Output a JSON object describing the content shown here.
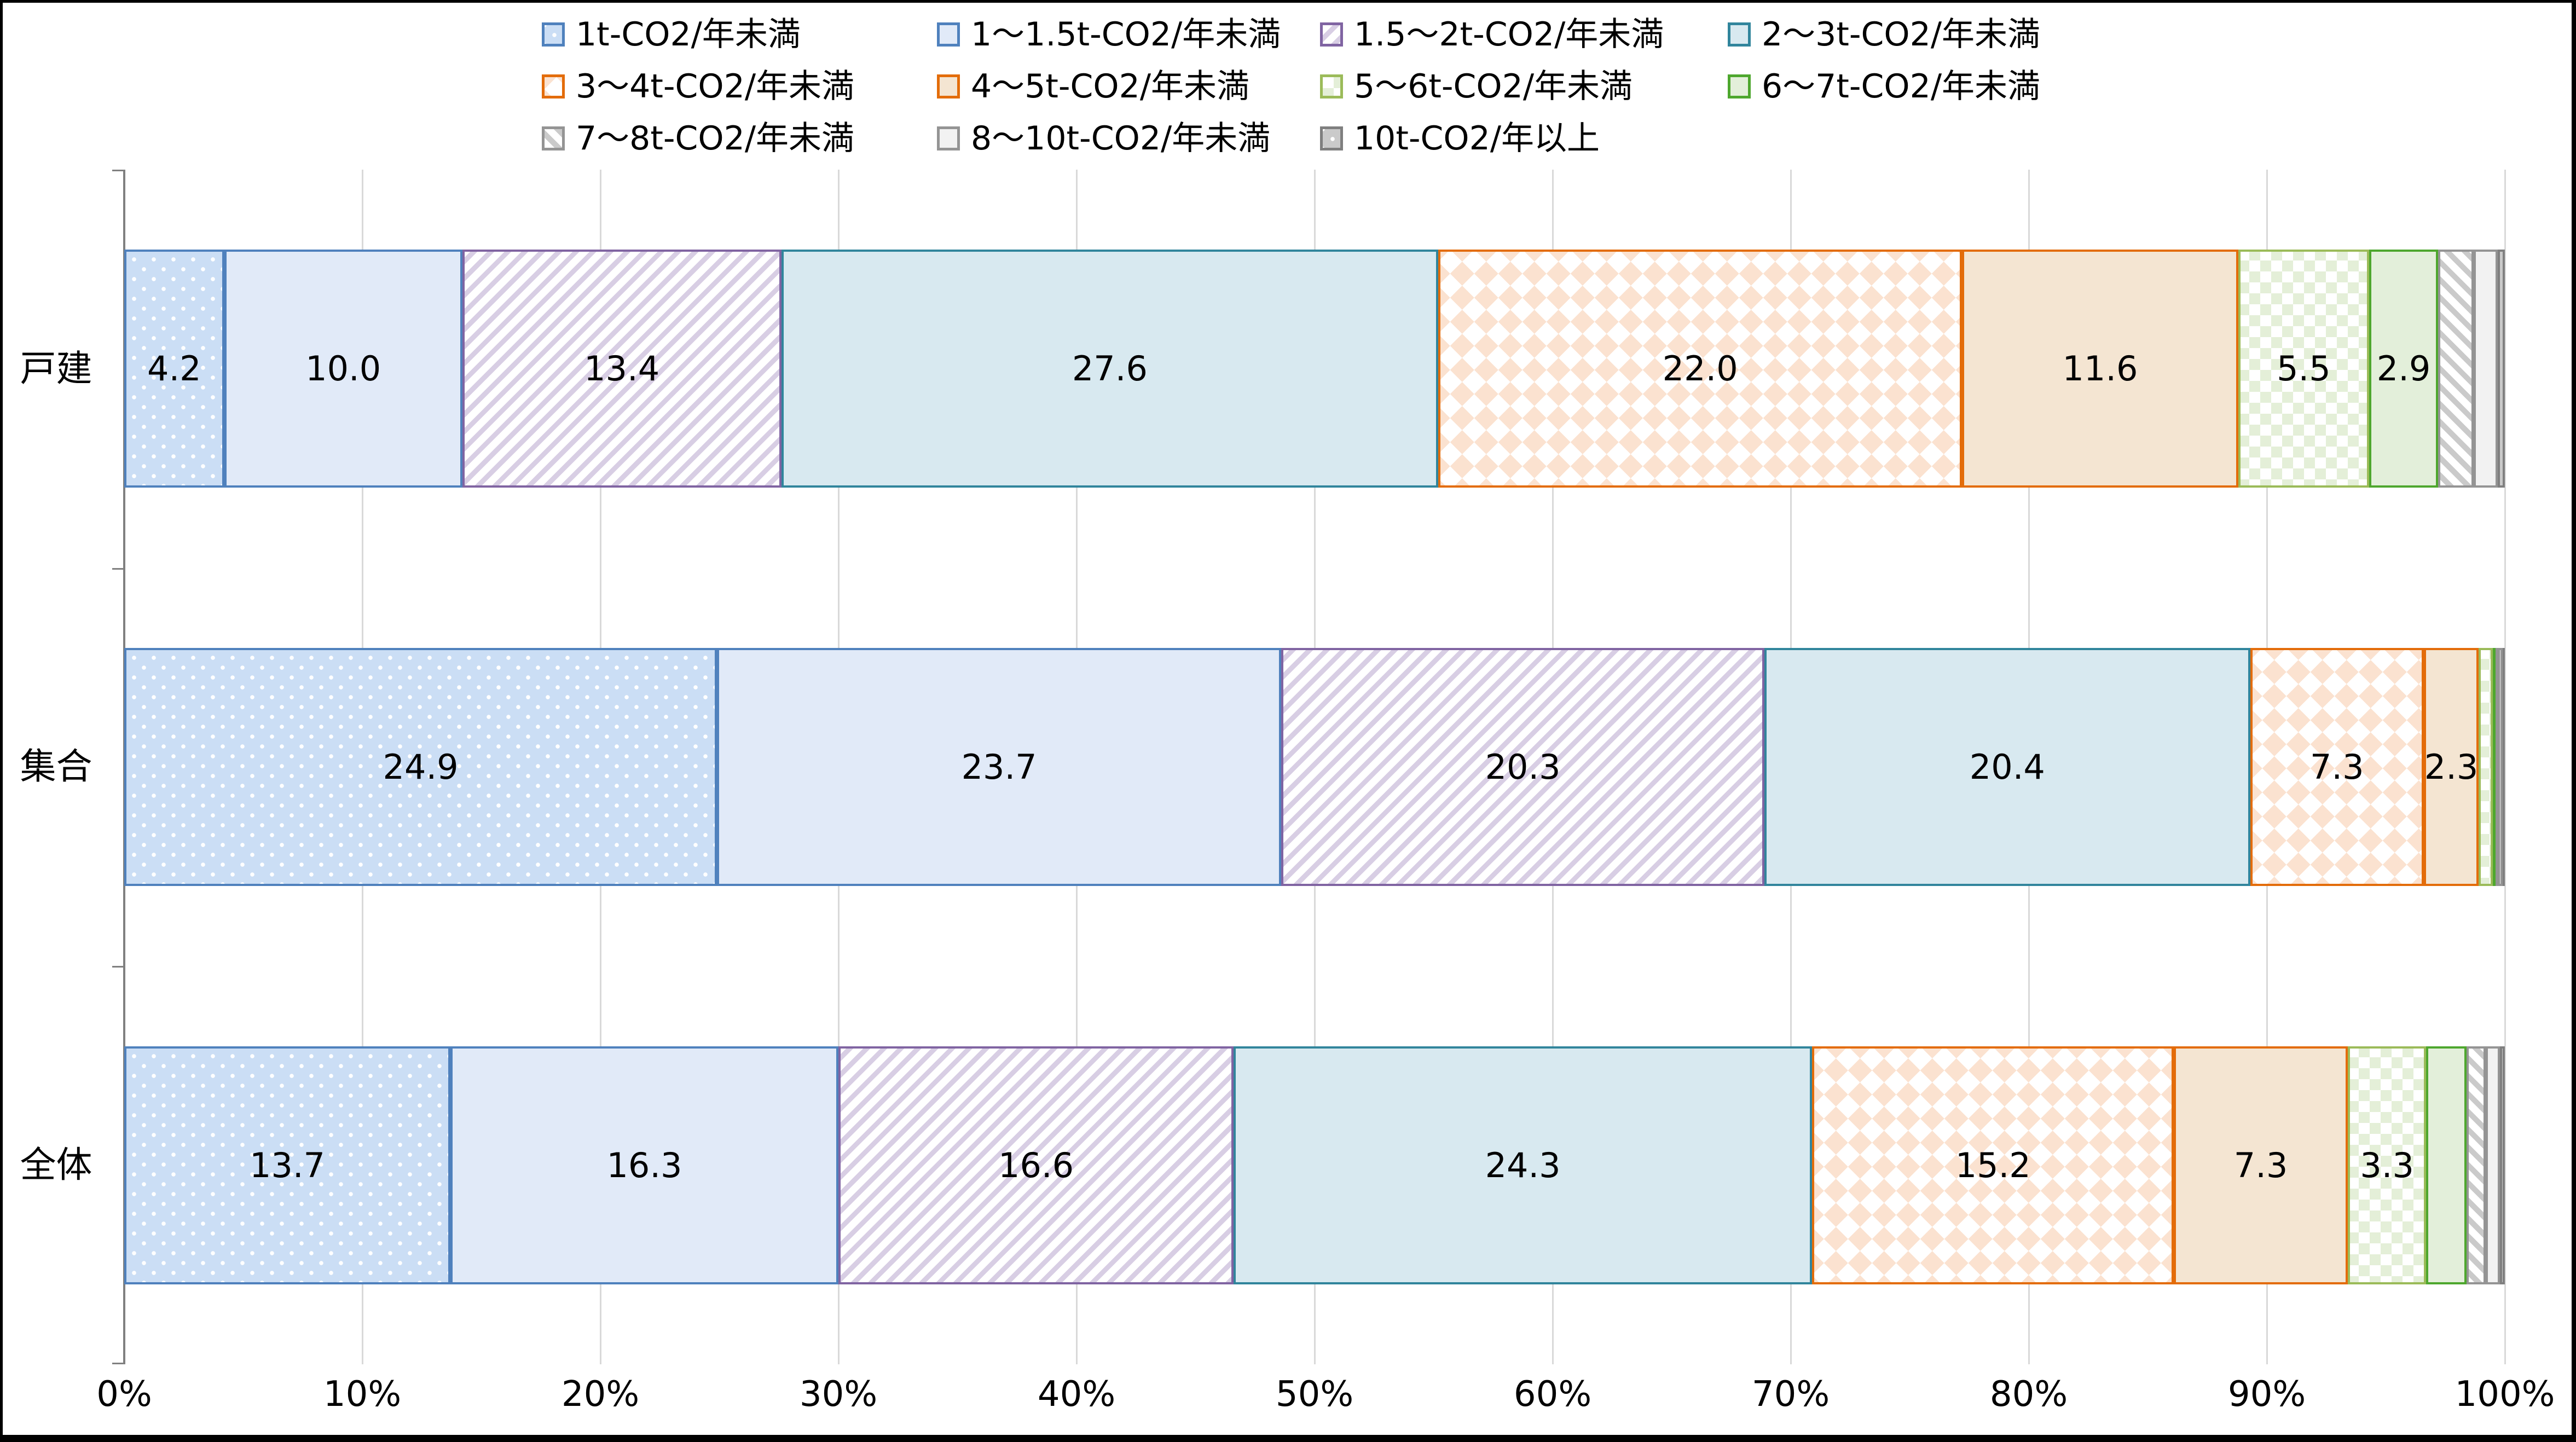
{
  "chart_data": {
    "type": "bar",
    "orientation": "horizontal",
    "stacked": true,
    "unit": "%",
    "grid": true,
    "legend_position": "top",
    "categories": [
      "戸建",
      "集合",
      "全体"
    ],
    "xlim": [
      0,
      100
    ],
    "x_tick_labels": [
      "0%",
      "10%",
      "20%",
      "30%",
      "40%",
      "50%",
      "60%",
      "70%",
      "80%",
      "90%",
      "100%"
    ],
    "value_label_min_pct": 2,
    "colors": {
      "gridline": "#D9D9D9",
      "axis": "#808080",
      "text": "#000000"
    },
    "series": [
      {
        "name": "1t-CO2/年未満",
        "pattern": "dots",
        "fill": "#CBDEF5",
        "accent": "#FFFFFF",
        "border": "#4F81BD",
        "values": [
          4.2,
          24.9,
          13.7
        ]
      },
      {
        "name": "1～1.5t-CO2/年未満",
        "pattern": "solid",
        "fill": "#E1EAF8",
        "accent": "#E1EAF8",
        "border": "#4F81BD",
        "values": [
          10.0,
          23.7,
          16.3
        ]
      },
      {
        "name": "1.5～2t-CO2/年未満",
        "pattern": "stripes-up",
        "fill": "#FFFFFF",
        "accent": "#D8CEE4",
        "border": "#8064A2",
        "values": [
          13.4,
          20.3,
          16.6
        ]
      },
      {
        "name": "2～3t-CO2/年未満",
        "pattern": "solid",
        "fill": "#D8E9F0",
        "accent": "#D8E9F0",
        "border": "#31859C",
        "values": [
          27.6,
          20.4,
          24.3
        ]
      },
      {
        "name": "3～4t-CO2/年未満",
        "pattern": "diamonds",
        "fill": "#FFFFFF",
        "accent": "#FBE2D0",
        "border": "#E36C0A",
        "values": [
          22.0,
          7.3,
          15.2
        ]
      },
      {
        "name": "4～5t-CO2/年未満",
        "pattern": "solid",
        "fill": "#F4E5D2",
        "accent": "#F4E5D2",
        "border": "#E36C0A",
        "values": [
          11.6,
          2.3,
          7.3
        ]
      },
      {
        "name": "5～6t-CO2/年未満",
        "pattern": "checker",
        "fill": "#FFFFFF",
        "accent": "#E4EFD8",
        "border": "#9BBB59",
        "values": [
          5.5,
          0.6,
          3.3
        ]
      },
      {
        "name": "6～7t-CO2/年未満",
        "pattern": "solid",
        "fill": "#E3EFDA",
        "accent": "#E3EFDA",
        "border": "#4EA72E",
        "values": [
          2.9,
          0.1,
          1.7
        ]
      },
      {
        "name": "7～8t-CO2/年未満",
        "pattern": "stripes-down",
        "fill": "#FFFFFF",
        "accent": "#CACACA",
        "border": "#949494",
        "values": [
          1.5,
          0.1,
          0.8
        ]
      },
      {
        "name": "8～10t-CO2/年未満",
        "pattern": "solid",
        "fill": "#F2F2F2",
        "accent": "#F2F2F2",
        "border": "#949494",
        "values": [
          1.0,
          0.2,
          0.6
        ]
      },
      {
        "name": "10t-CO2/年以上",
        "pattern": "dots",
        "fill": "#CACACA",
        "accent": "#FFFFFF",
        "border": "#7F7F7F",
        "values": [
          0.3,
          0.1,
          0.2
        ]
      }
    ]
  }
}
